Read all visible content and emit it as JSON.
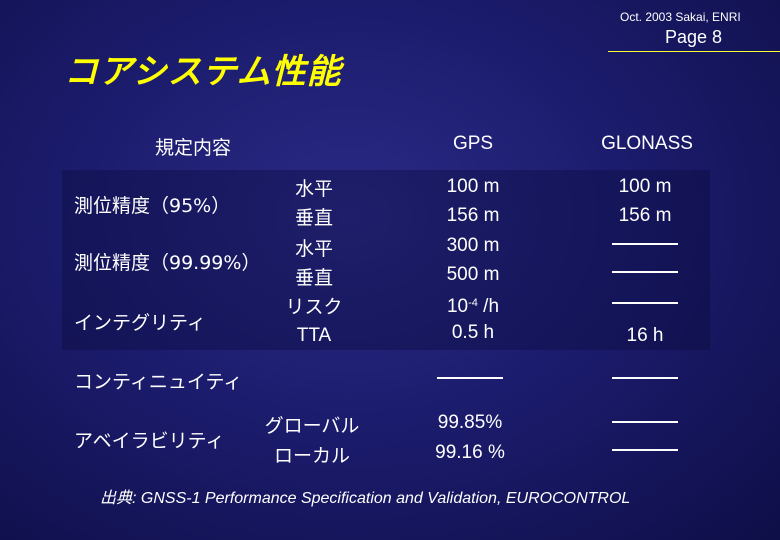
{
  "header": {
    "note": "Oct. 2003 Sakai, ENRI",
    "page": "Page 8"
  },
  "title": "コアシステム性能",
  "table": {
    "col_spec": "規定内容",
    "col_gps": "GPS",
    "col_glonass": "GLONASS",
    "rows": {
      "acc95": {
        "label": "測位精度（95%）",
        "sub_h": "水平",
        "sub_v": "垂直",
        "gps_h": "100 m",
        "gps_v": "156 m",
        "glo_h": "100 m",
        "glo_v": "156 m"
      },
      "acc9999": {
        "label": "測位精度（99.99%）",
        "sub_h": "水平",
        "sub_v": "垂直",
        "gps_h": "300 m",
        "gps_v": "500 m"
      },
      "integrity": {
        "label": "インテグリティ",
        "sub_risk": "リスク",
        "sub_tta": "TTA",
        "gps_risk_base": "10",
        "gps_risk_exp": "-4",
        "gps_risk_unit": " /h",
        "gps_tta": "0.5 h",
        "glo_tta": "16 h"
      },
      "continuity": {
        "label": "コンティニュイティ"
      },
      "availability": {
        "label": "アベイラビリティ",
        "sub_global": "グローバル",
        "sub_local": "ローカル",
        "gps_global": "99.85%",
        "gps_local": "99.16 %"
      }
    }
  },
  "source": {
    "prefix": "出典",
    "text": ": GNSS-1 Performance Specification and Validation, EUROCONTROL"
  }
}
